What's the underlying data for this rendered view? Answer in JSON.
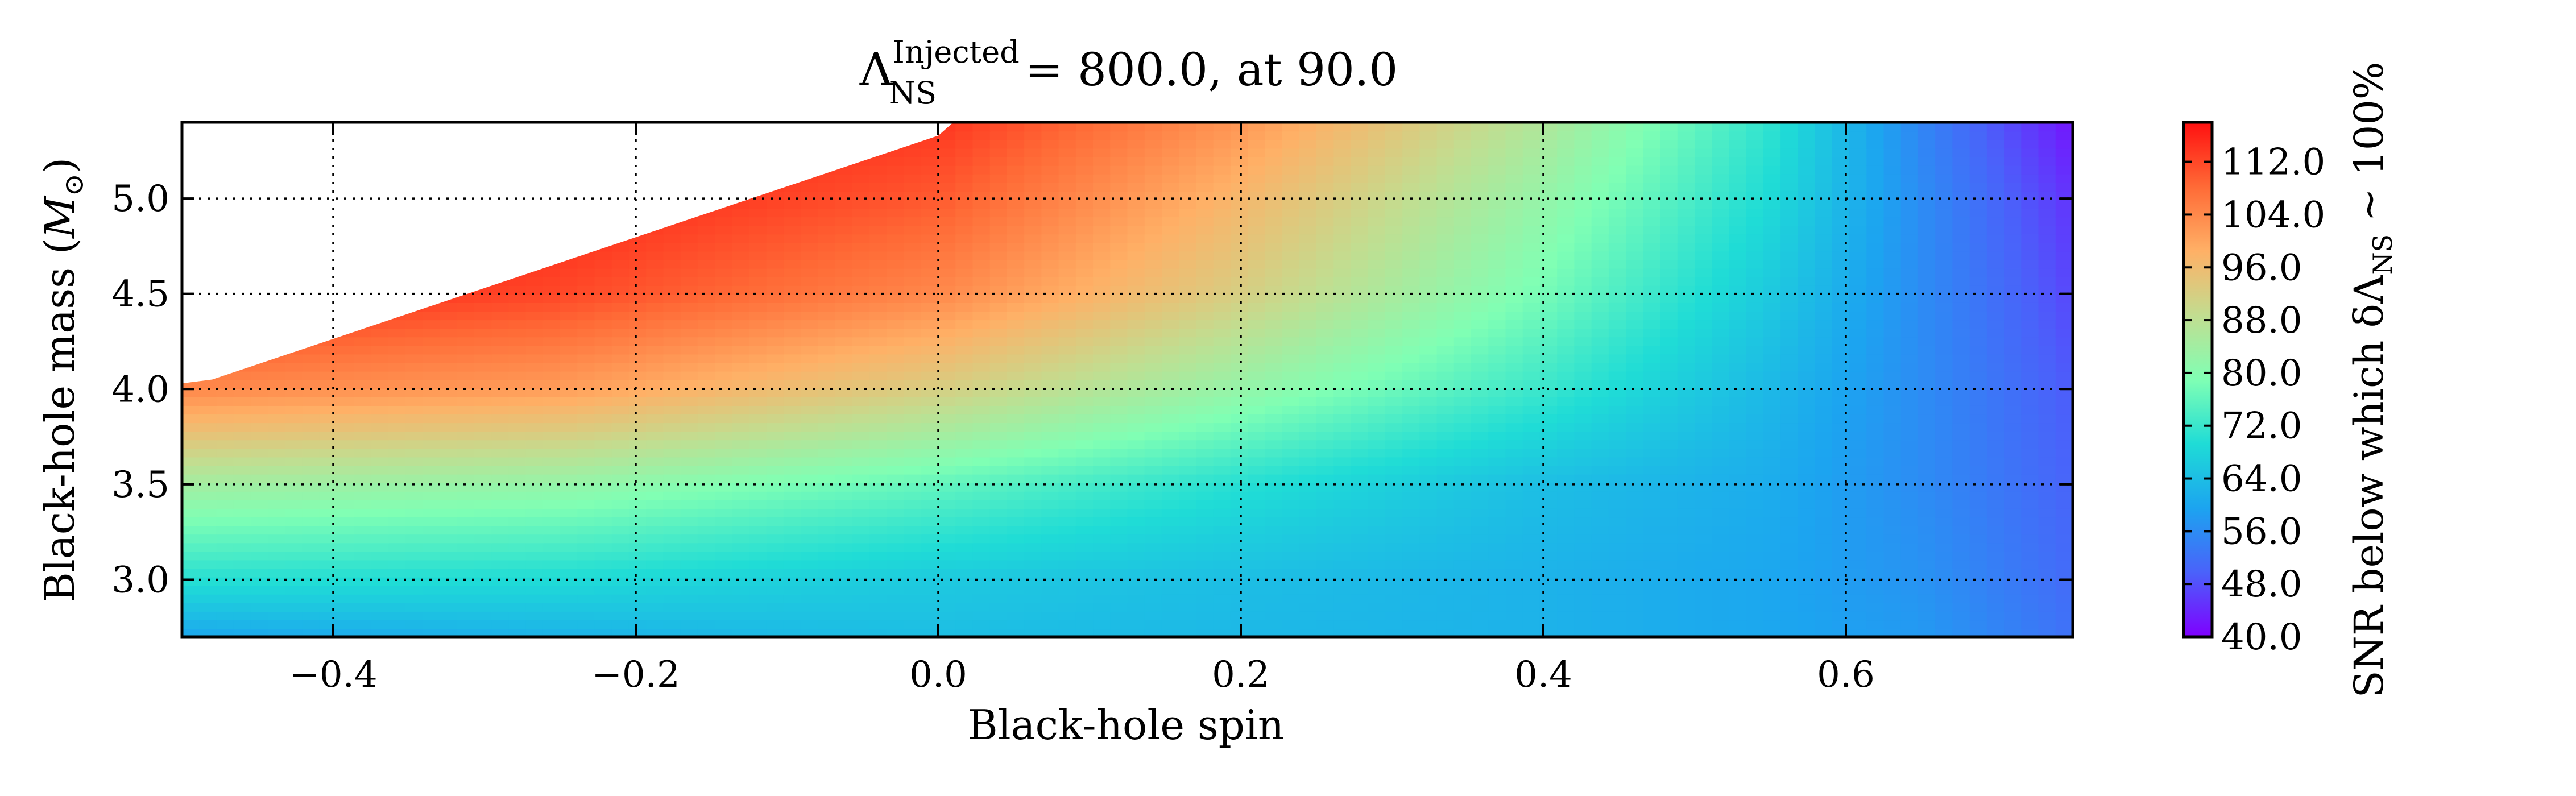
{
  "chart_data": {
    "type": "heatmap",
    "title": {
      "symbol": "Λ",
      "superscript": "Injected",
      "subscript": "NS",
      "rest": " = 800.0, at 90.0"
    },
    "xlabel": "Black-hole spin",
    "ylabel": {
      "text": "Black-hole mass (",
      "symbol": "M",
      "subscript": "⊙",
      "close": ")"
    },
    "xlim": [
      -0.5,
      0.75
    ],
    "ylim": [
      2.7,
      5.4
    ],
    "x_ticks": [
      -0.4,
      -0.2,
      0.0,
      0.2,
      0.4,
      0.6
    ],
    "x_tick_labels": [
      "−0.4",
      "−0.2",
      "0.0",
      "0.2",
      "0.4",
      "0.6"
    ],
    "y_ticks": [
      3.0,
      3.5,
      4.0,
      4.5,
      5.0
    ],
    "y_tick_labels": [
      "3.0",
      "3.5",
      "4.0",
      "4.5",
      "5.0"
    ],
    "grid": true,
    "grid_style": "dotted",
    "colormap": "rainbow",
    "colorbar": {
      "range": [
        40.0,
        118.0
      ],
      "ticks": [
        40.0,
        48.0,
        56.0,
        64.0,
        72.0,
        80.0,
        88.0,
        96.0,
        104.0,
        112.0
      ],
      "tick_labels": [
        "40.0",
        "48.0",
        "56.0",
        "64.0",
        "72.0",
        "80.0",
        "88.0",
        "96.0",
        "104.0",
        "112.0"
      ],
      "label": {
        "text": "SNR below which δΛ",
        "subscript": "NS",
        "tail": " ∼ 100%"
      }
    },
    "valid_region_boundary": [
      {
        "x": -0.5,
        "y": 4.03
      },
      {
        "x": -0.48,
        "y": 4.05
      },
      {
        "x": 0.0,
        "y": 5.33
      },
      {
        "x": 0.01,
        "y": 5.4
      }
    ],
    "snr_grid": {
      "x": [
        -0.5,
        -0.25,
        0.0,
        0.2,
        0.4,
        0.55,
        0.65,
        0.75
      ],
      "y": [
        2.7,
        3.0,
        3.5,
        4.0,
        4.5,
        5.0,
        5.4
      ],
      "z": [
        [
          60,
          62,
          64,
          63,
          62,
          60,
          58,
          52
        ],
        [
          70,
          69,
          66,
          64,
          62,
          60,
          57,
          51
        ],
        [
          84,
          82,
          76,
          70,
          64,
          61,
          56,
          50
        ],
        [
          104,
          101,
          92,
          82,
          72,
          63,
          56,
          49
        ],
        [
          116,
          112,
          104,
          92,
          78,
          66,
          56,
          47
        ],
        [
          118,
          116,
          110,
          97,
          82,
          69,
          56,
          45
        ],
        [
          118,
          117,
          114,
          102,
          86,
          71,
          55,
          42
        ]
      ]
    },
    "colormap_stops": [
      {
        "v": 0.0,
        "color": "#7f00ff"
      },
      {
        "v": 0.125,
        "color": "#4a62fa"
      },
      {
        "v": 0.25,
        "color": "#1ca4f0"
      },
      {
        "v": 0.375,
        "color": "#1fdcd6"
      },
      {
        "v": 0.5,
        "color": "#80ffb4"
      },
      {
        "v": 0.625,
        "color": "#c2dd90"
      },
      {
        "v": 0.75,
        "color": "#ffb066"
      },
      {
        "v": 0.875,
        "color": "#ff6a36"
      },
      {
        "v": 1.0,
        "color": "#ff1010"
      }
    ]
  }
}
